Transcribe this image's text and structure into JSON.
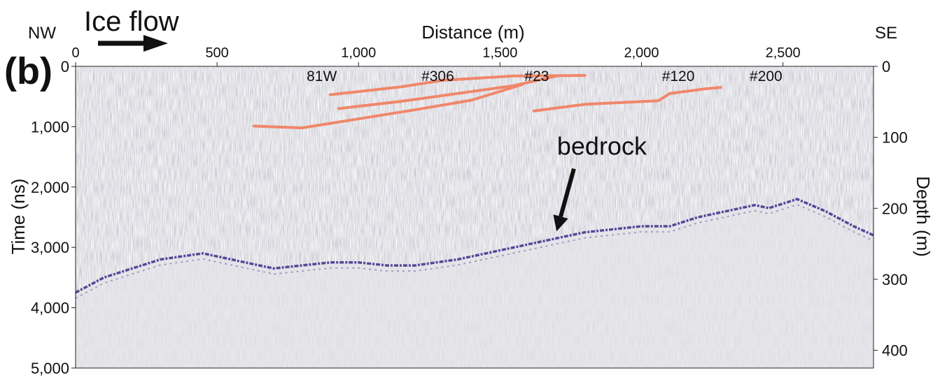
{
  "chart_data": {
    "type": "radargram",
    "panel_label": "(b)",
    "x_axis": {
      "label": "Distance (m)",
      "range": [
        0,
        2820
      ],
      "ticks": [
        0,
        500,
        1000,
        1500,
        2000,
        2500
      ],
      "tick_labels": [
        "0",
        "500",
        "1,000",
        "1,500",
        "2,000",
        "2,500"
      ],
      "left_end_label": "NW",
      "right_end_label": "SE"
    },
    "y_axis_left": {
      "label": "Time (ns)",
      "range": [
        0,
        5000
      ],
      "ticks": [
        0,
        1000,
        2000,
        3000,
        4000,
        5000
      ],
      "tick_labels": [
        "0",
        "1,000",
        "2,000",
        "3,000",
        "4,000",
        "5,000"
      ],
      "inverted": true
    },
    "y_axis_right": {
      "label": "Depth (m)",
      "range": [
        0,
        425
      ],
      "ticks": [
        0,
        100,
        200,
        300,
        400
      ],
      "tick_labels": [
        "0",
        "100",
        "200",
        "300",
        "400"
      ],
      "inverted": true
    },
    "ice_flow_label": "Ice flow",
    "ice_flow_direction": "left-to-right",
    "layer_color": "#f0876a",
    "bed_color": "#3a2d8a",
    "isochrones": [
      {
        "x": [
          900,
          1150,
          1300,
          1550,
          1700,
          1800
        ],
        "y": [
          470,
          340,
          230,
          160,
          155,
          150
        ]
      },
      {
        "x": [
          930,
          1150,
          1350,
          1550,
          1700
        ],
        "y": [
          700,
          580,
          450,
          320,
          160
        ]
      },
      {
        "x": [
          630,
          800,
          1000,
          1200,
          1400,
          1580
        ],
        "y": [
          990,
          1020,
          870,
          720,
          560,
          300
        ]
      },
      {
        "x": [
          1620,
          1800,
          1970,
          2060,
          2100,
          2230,
          2280
        ],
        "y": [
          740,
          630,
          590,
          570,
          450,
          370,
          350
        ]
      }
    ],
    "bedrock_trace": {
      "x": [
        0,
        100,
        200,
        300,
        450,
        600,
        700,
        800,
        900,
        1000,
        1100,
        1200,
        1350,
        1500,
        1600,
        1700,
        1800,
        1900,
        2000,
        2100,
        2200,
        2300,
        2350,
        2400,
        2450,
        2550,
        2650,
        2750,
        2820
      ],
      "y": [
        3750,
        3500,
        3350,
        3200,
        3100,
        3250,
        3350,
        3300,
        3250,
        3250,
        3300,
        3300,
        3200,
        3050,
        2950,
        2850,
        2750,
        2700,
        2650,
        2650,
        2500,
        2400,
        2350,
        2300,
        2350,
        2200,
        2400,
        2650,
        2800
      ]
    },
    "annotations": [
      {
        "text": "81W",
        "x": 870,
        "y": 150
      },
      {
        "text": "#306",
        "x": 1280,
        "y": 150
      },
      {
        "text": "#23",
        "x": 1630,
        "y": 150
      },
      {
        "text": "#120",
        "x": 2130,
        "y": 150
      },
      {
        "text": "#200",
        "x": 2440,
        "y": 150
      },
      {
        "text": "bedrock",
        "x": 1860,
        "y": 1350,
        "arrow_to_x": 1700,
        "arrow_to_y": 2850
      }
    ]
  }
}
